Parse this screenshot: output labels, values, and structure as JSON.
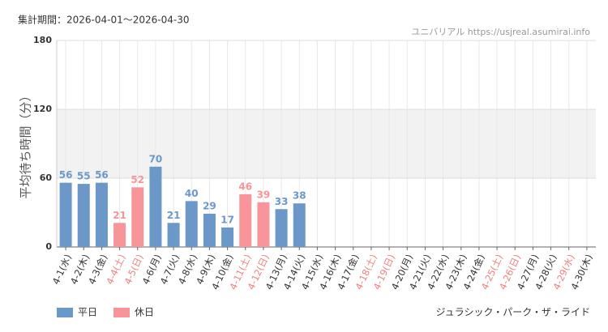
{
  "chart_data": {
    "type": "bar",
    "title": "集計期間：2026-04-01〜2026-04-30",
    "source": "ユニバリアル  https://usjreal.asumirai.info",
    "attraction": "ジュラシック・パーク・ザ・ライド",
    "y_label": "平均待ち時間（分）",
    "categories": [
      "4-1(水)",
      "4-2(木)",
      "4-3(金)",
      "4-4(土)",
      "4-5(日)",
      "4-6(月)",
      "4-7(火)",
      "4-8(水)",
      "4-9(木)",
      "4-10(金)",
      "4-11(土)",
      "4-12(日)",
      "4-13(月)",
      "4-14(火)",
      "4-15(水)",
      "4-16(木)",
      "4-17(金)",
      "4-18(土)",
      "4-19(日)",
      "4-20(月)",
      "4-21(火)",
      "4-22(水)",
      "4-23(木)",
      "4-24(金)",
      "4-25(土)",
      "4-26(日)",
      "4-27(月)",
      "4-28(火)",
      "4-29(水)",
      "4-30(木)"
    ],
    "label_colors": [
      "#333",
      "#333",
      "#333",
      "#f08080",
      "#f08080",
      "#333",
      "#333",
      "#333",
      "#333",
      "#333",
      "#f08080",
      "#f08080",
      "#333",
      "#333",
      "#333",
      "#333",
      "#333",
      "#f08080",
      "#f08080",
      "#333",
      "#333",
      "#333",
      "#333",
      "#333",
      "#f08080",
      "#f08080",
      "#333",
      "#333",
      "#f08080",
      "#333"
    ],
    "series": [
      {
        "name": "平日",
        "color": "#6b98c8",
        "values": [
          56,
          55,
          56,
          null,
          null,
          70,
          21,
          40,
          29,
          17,
          null,
          null,
          33,
          38,
          null,
          null,
          null,
          null,
          null,
          null,
          null,
          null,
          null,
          null,
          null,
          null,
          null,
          null,
          null,
          null
        ]
      },
      {
        "name": "休日",
        "color": "#f7959a",
        "values": [
          null,
          null,
          null,
          21,
          52,
          null,
          null,
          null,
          null,
          null,
          46,
          39,
          null,
          null,
          null,
          null,
          null,
          null,
          null,
          null,
          null,
          null,
          null,
          null,
          null,
          null,
          null,
          null,
          null,
          null
        ]
      }
    ],
    "ylim": [
      0,
      180
    ],
    "yticks": [
      0,
      60,
      120,
      180
    ],
    "band": [
      60,
      120
    ],
    "grid": true
  }
}
